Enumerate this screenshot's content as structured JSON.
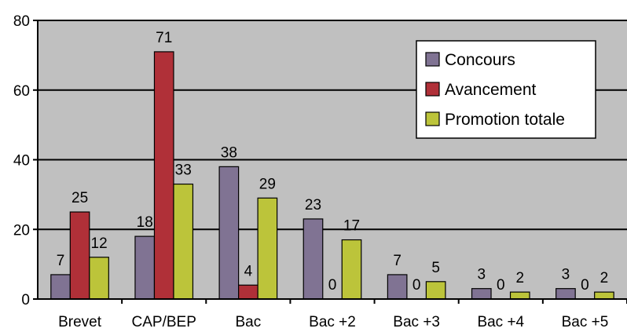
{
  "chart_data": {
    "type": "bar",
    "title": "",
    "xlabel": "",
    "ylabel": "",
    "categories": [
      "Brevet",
      "CAP/BEP",
      "Bac",
      "Bac +2",
      "Bac +3",
      "Bac +4",
      "Bac +5"
    ],
    "series": [
      {
        "name": "Concours",
        "values": [
          7,
          18,
          38,
          23,
          7,
          3,
          3
        ],
        "color": "#807393"
      },
      {
        "name": "Avancement",
        "values": [
          25,
          71,
          4,
          0,
          0,
          0,
          0
        ],
        "color": "#b03038"
      },
      {
        "name": "Promotion totale",
        "values": [
          12,
          33,
          29,
          17,
          5,
          2,
          2
        ],
        "color": "#bcc43a"
      }
    ],
    "ylim": [
      0,
      80
    ],
    "yticks": [
      0,
      20,
      40,
      60,
      80
    ],
    "grid": true,
    "legend_position": "top-right",
    "plot_background": "#c0c0c0",
    "bar_outline": "#000000"
  }
}
